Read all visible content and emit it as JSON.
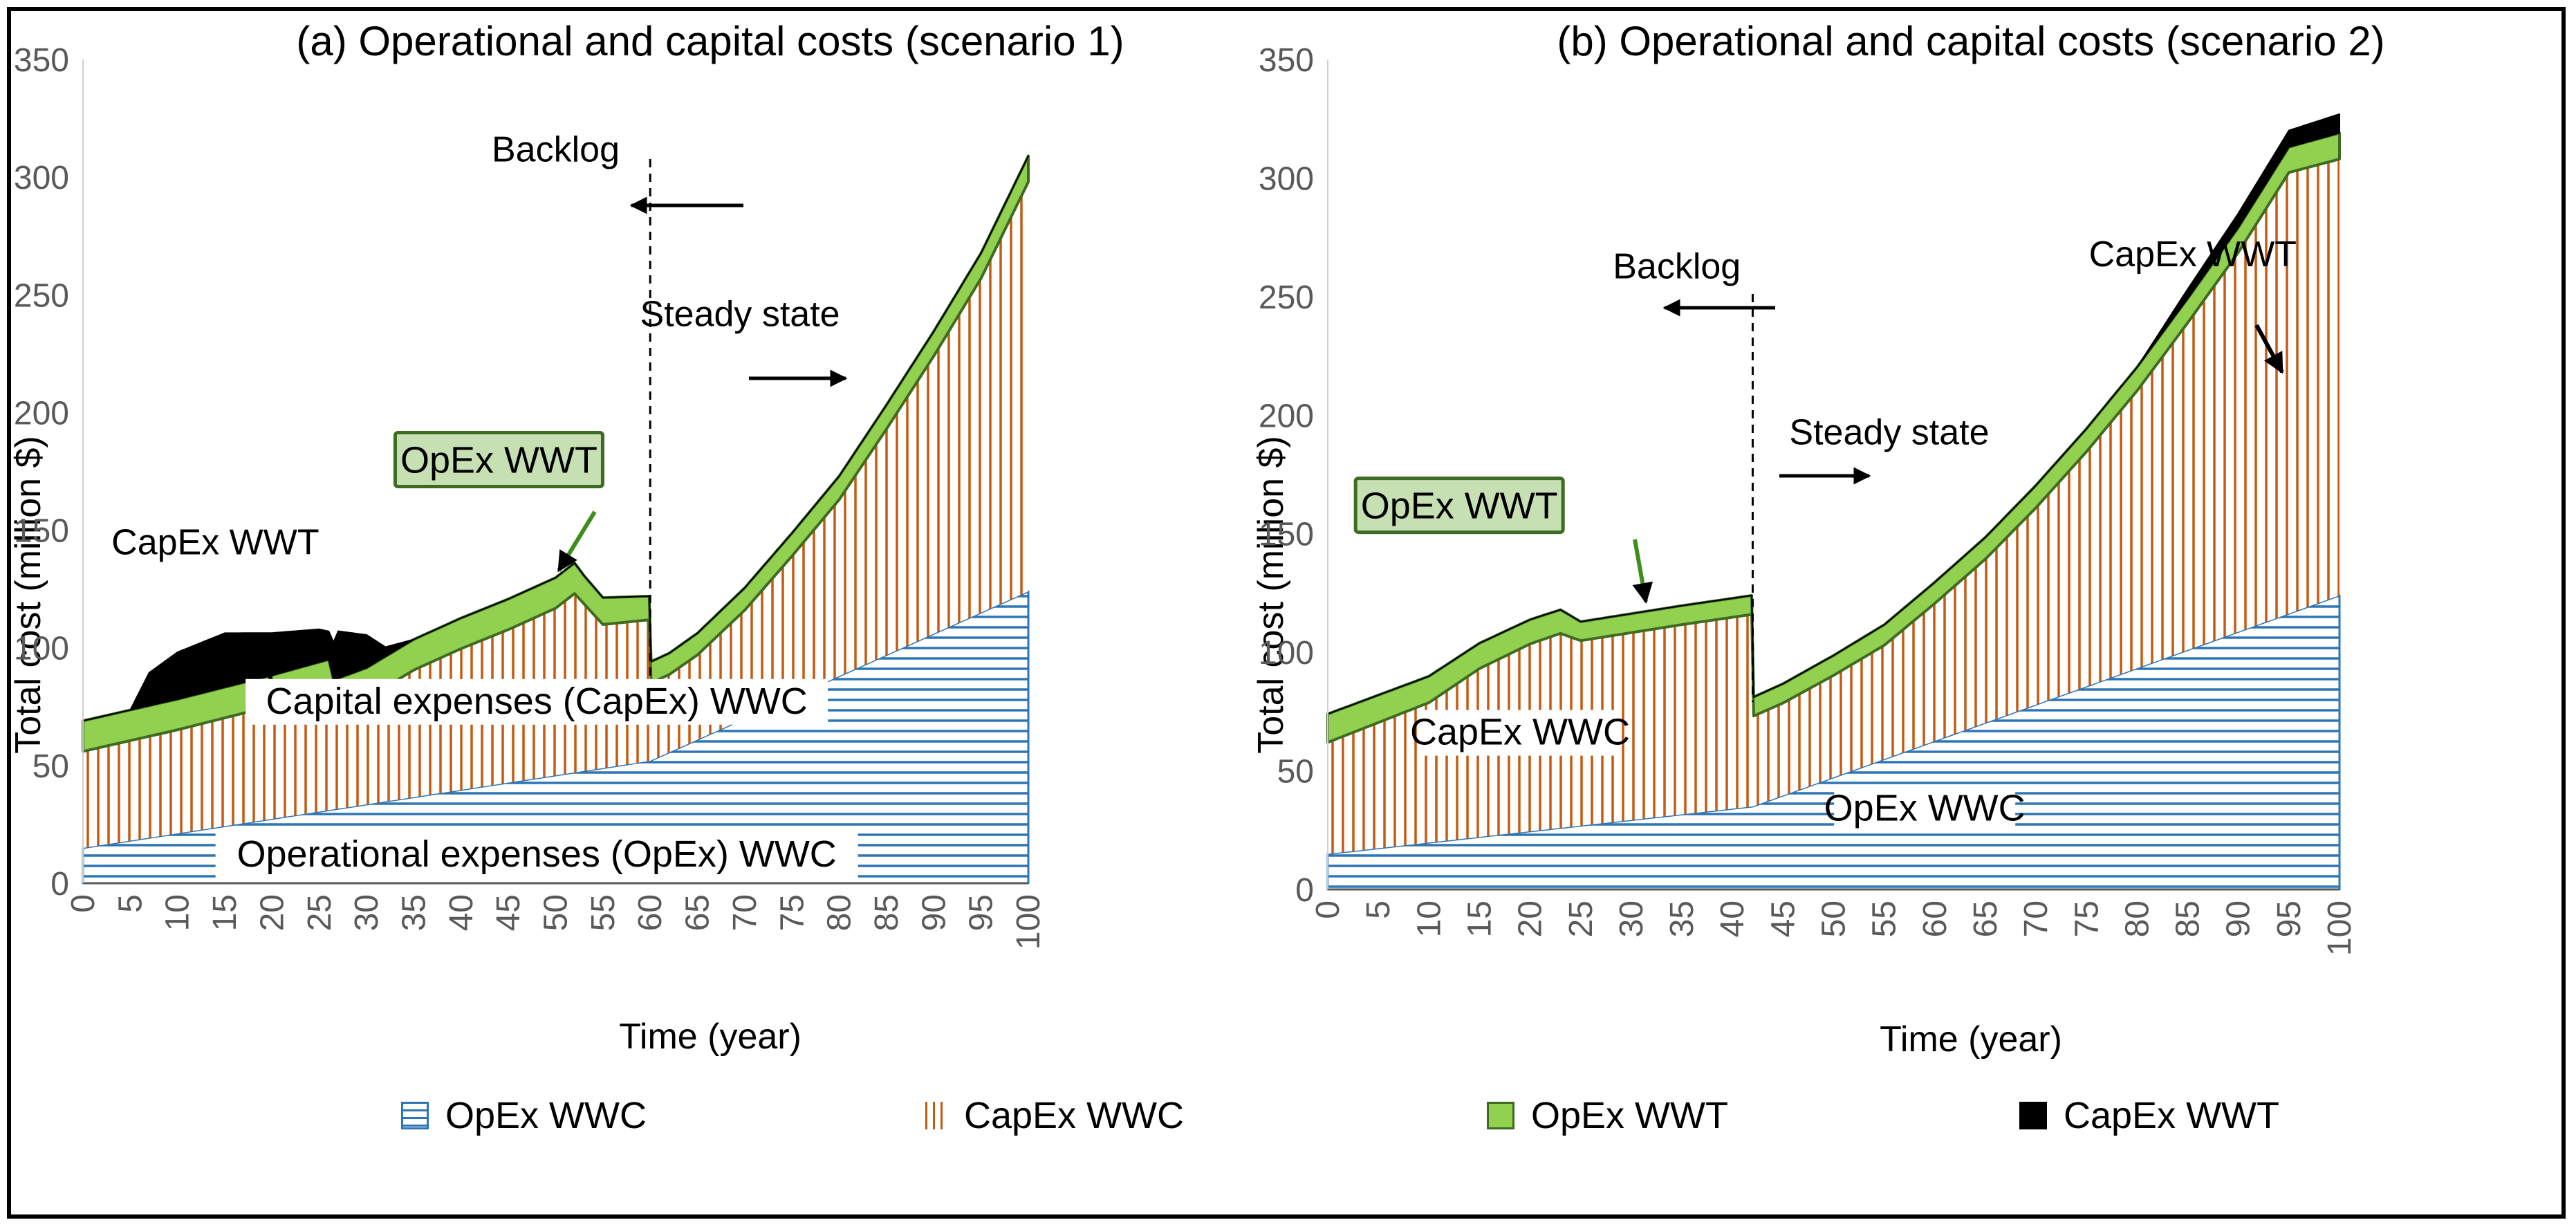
{
  "chart_data": [
    {
      "type": "area",
      "stacked": true,
      "title": "(a) Operational and capital costs (scenario 1)",
      "xlabel": "Time (year)",
      "ylabel": "Total cost (million $)",
      "xlim": [
        0,
        100
      ],
      "ylim": [
        0,
        350
      ],
      "x_ticks": [
        0,
        5,
        10,
        15,
        20,
        25,
        30,
        35,
        40,
        45,
        50,
        55,
        60,
        65,
        70,
        75,
        80,
        85,
        90,
        95,
        100
      ],
      "y_ticks": [
        0,
        50,
        100,
        150,
        200,
        250,
        300,
        350
      ],
      "series": [
        {
          "name": "OpEx WWC",
          "x": [
            0,
            60,
            100
          ],
          "y": [
            15,
            52,
            124
          ]
        },
        {
          "name": "CapEx WWC",
          "x": [
            0,
            10,
            20,
            26,
            26.5,
            30,
            35,
            40,
            45,
            50,
            52,
            53,
            55,
            59.9,
            60.1,
            62,
            65,
            70,
            75,
            80,
            85,
            90,
            95,
            100
          ],
          "y": [
            41,
            44,
            48,
            51,
            42,
            45,
            54,
            60,
            65,
            71,
            76,
            71,
            61,
            60,
            33,
            33,
            36,
            46,
            60,
            75,
            96,
            118,
            142,
            174
          ]
        },
        {
          "name": "OpEx WWT",
          "x": [
            0,
            52,
            53,
            59.9,
            60.1,
            100
          ],
          "y": [
            13,
            13,
            12,
            10,
            9,
            11
          ]
        },
        {
          "name": "CapEx WWT",
          "x": [
            0,
            4,
            5,
            7,
            10,
            15,
            20,
            25,
            26,
            27,
            30,
            32,
            35,
            100
          ],
          "y": [
            0,
            0,
            0,
            14,
            20,
            23,
            18,
            14,
            12,
            20,
            14,
            4,
            0,
            0
          ]
        }
      ],
      "annotations": [
        {
          "text": "CapEx WWT",
          "x": 14,
          "y": 145
        },
        {
          "text": "OpEx WWT",
          "x": 44,
          "y": 180
        },
        {
          "text": "Capital expenses (CapEx) WWC",
          "x": 48,
          "y": 75
        },
        {
          "text": "Operational expenses (OpEx) WWC",
          "x": 48,
          "y": 10
        },
        {
          "text": "Backlog",
          "x": 50,
          "y": 312
        },
        {
          "text": "Steady state",
          "x": 69.5,
          "y": 242
        }
      ],
      "divider_x": 60
    },
    {
      "type": "area",
      "stacked": true,
      "title": "(b) Operational and capital costs (scenario 2)",
      "xlabel": "Time (year)",
      "ylabel": "Total cost (million $)",
      "xlim": [
        0,
        100
      ],
      "ylim": [
        0,
        350
      ],
      "x_ticks": [
        0,
        5,
        10,
        15,
        20,
        25,
        30,
        35,
        40,
        45,
        50,
        55,
        60,
        65,
        70,
        75,
        80,
        85,
        90,
        95,
        100
      ],
      "y_ticks": [
        0,
        50,
        100,
        150,
        200,
        250,
        300,
        350
      ],
      "series": [
        {
          "name": "OpEx WWC",
          "x": [
            0,
            42,
            100
          ],
          "y": [
            15,
            35,
            124
          ]
        },
        {
          "name": "CapEx WWC",
          "x": [
            0,
            10,
            15,
            20,
            23,
            25,
            30,
            35,
            41.9,
            42.1,
            45,
            50,
            55,
            60,
            65,
            70,
            75,
            80,
            85,
            90,
            95,
            100
          ],
          "y": [
            47,
            59,
            71,
            79,
            82,
            78,
            79,
            80,
            81,
            38,
            39,
            43,
            48,
            58,
            69,
            83,
            99,
            117,
            138,
            160,
            186,
            184
          ]
        },
        {
          "name": "OpEx WWT",
          "x": [
            0,
            23,
            25,
            41.9,
            42.1,
            100
          ],
          "y": [
            12,
            10,
            8,
            8,
            8,
            11
          ]
        },
        {
          "name": "CapEx WWT",
          "x": [
            0,
            79,
            80,
            85,
            90,
            95,
            100
          ],
          "y": [
            0,
            0,
            0,
            4,
            6,
            7,
            8
          ]
        }
      ],
      "annotations": [
        {
          "text": "OpEx WWT",
          "x": 13,
          "y": 162
        },
        {
          "text": "CapEx WWC",
          "x": 19,
          "y": 64
        },
        {
          "text": "OpEx WWC",
          "x": 59,
          "y": 32
        },
        {
          "text": "Backlog",
          "x": 34.5,
          "y": 263
        },
        {
          "text": "Steady state",
          "x": 55.5,
          "y": 193
        },
        {
          "text": "CapEx WWT",
          "x": 85.5,
          "y": 268
        }
      ],
      "divider_x": 42
    }
  ],
  "legend": [
    {
      "label": "OpEx WWC",
      "color": "#2E75B6"
    },
    {
      "label": "CapEx WWC",
      "color": "#C55A11"
    },
    {
      "label": "OpEx WWT",
      "color": "#92D050"
    },
    {
      "label": "CapEx WWT",
      "color": "#000000"
    }
  ]
}
